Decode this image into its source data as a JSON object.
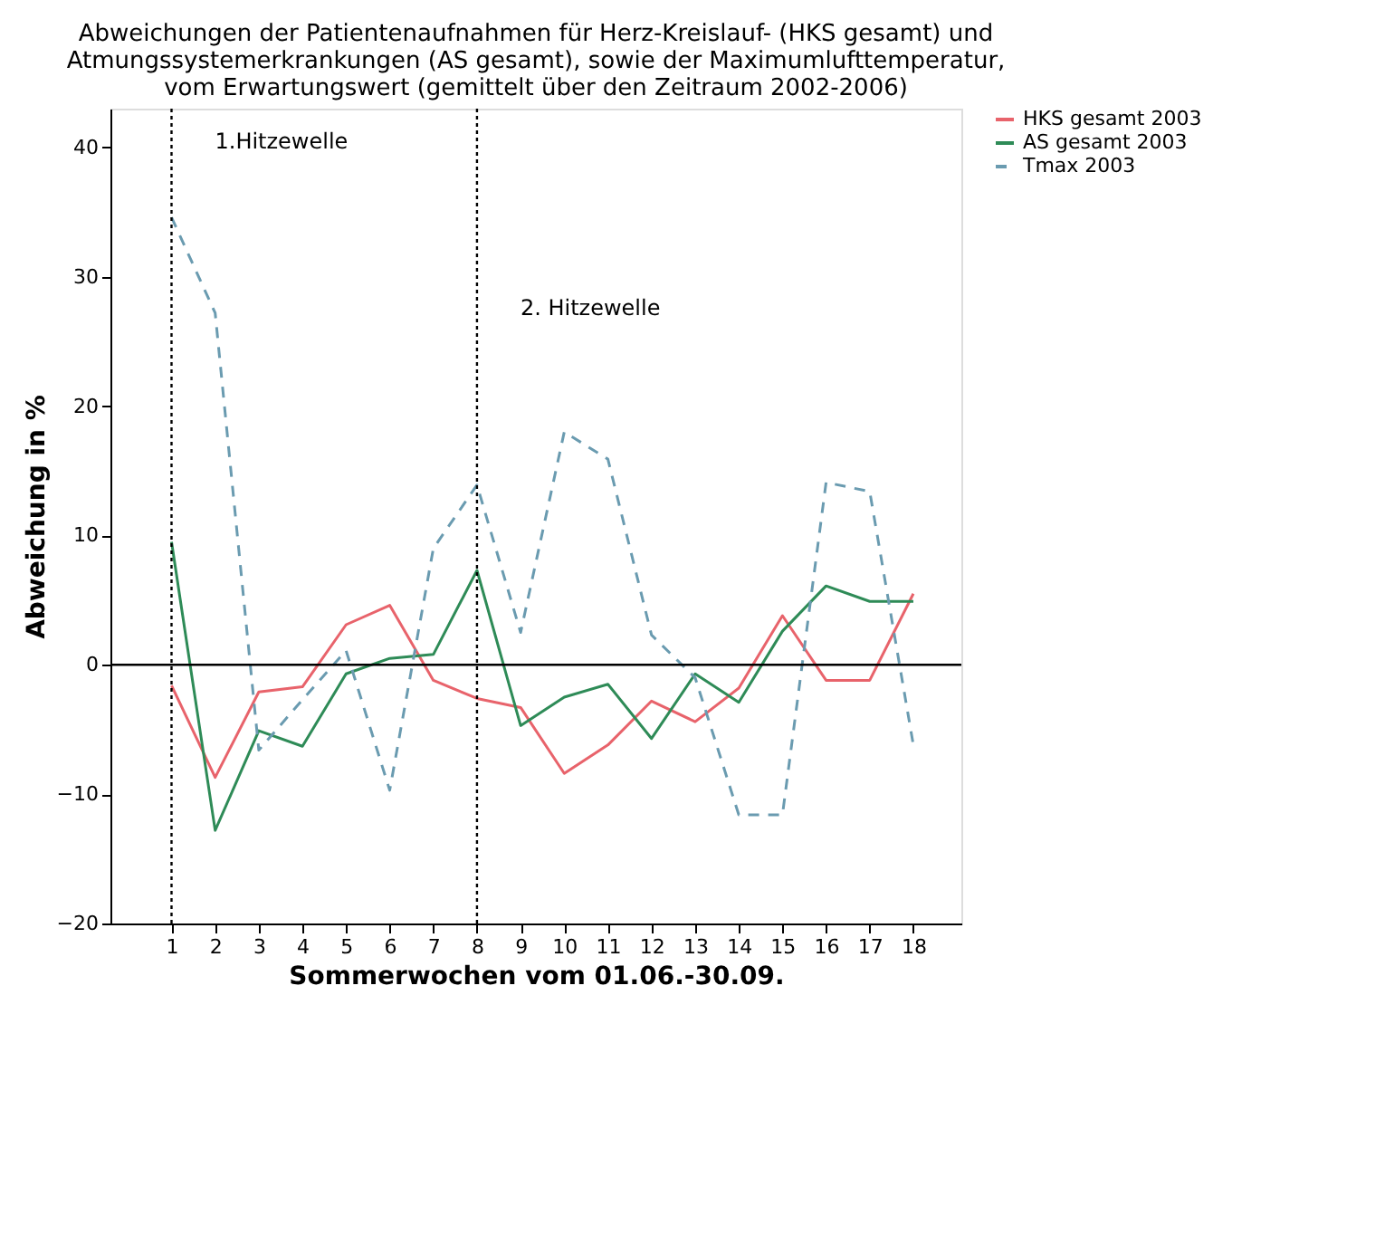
{
  "chart_data": {
    "type": "line",
    "title": "Abweichungen der Patientenaufnahmen für Herz-Kreislauf- (HKS gesamt) und\nAtmungssystemerkrankungen (AS gesamt), sowie der Maximumlufttemperatur,\nvom Erwartungswert (gemittelt über den Zeitraum 2002-2006)",
    "xlabel": "Sommerwochen vom 01.06.-30.09.",
    "ylabel": "Abweichung in %",
    "x": [
      1,
      2,
      3,
      4,
      5,
      6,
      7,
      8,
      9,
      10,
      11,
      12,
      13,
      14,
      15,
      16,
      17,
      18
    ],
    "series": [
      {
        "name": "HKS gesamt 2003",
        "color": "#e8636b",
        "line_style": "solid",
        "values": [
          -1.6,
          -8.7,
          -2.1,
          -1.7,
          3.1,
          4.6,
          -1.2,
          -2.6,
          -3.3,
          -8.4,
          -6.2,
          -2.8,
          -4.4,
          -1.8,
          3.8,
          -1.2,
          -1.2,
          5.5
        ]
      },
      {
        "name": "AS gesamt 2003",
        "color": "#2e8b57",
        "line_style": "solid",
        "values": [
          9.5,
          -12.8,
          -5.1,
          -6.3,
          -0.7,
          0.5,
          0.8,
          7.3,
          -4.7,
          -2.5,
          -1.5,
          -5.7,
          -0.7,
          -2.9,
          2.6,
          6.1,
          4.9,
          4.9
        ]
      },
      {
        "name": "Tmax 2003",
        "color": "#6a9bb0",
        "line_style": "dashed",
        "values": [
          34.6,
          27.2,
          -6.6,
          -2.7,
          1.1,
          -9.7,
          9.0,
          13.9,
          2.5,
          18.0,
          15.9,
          2.3,
          -1.0,
          -11.6,
          -11.6,
          14.1,
          13.4,
          -6.2
        ]
      }
    ],
    "xlim": [
      -0.4,
      19.1
    ],
    "xticks": [
      1,
      2,
      3,
      4,
      5,
      6,
      7,
      8,
      9,
      10,
      11,
      12,
      13,
      14,
      15,
      16,
      17,
      18
    ],
    "ylim": [
      -20,
      43
    ],
    "yticks": [
      -20,
      -10,
      0,
      10,
      20,
      30,
      40
    ],
    "ref_lines": [
      {
        "axis": "x",
        "value": 1,
        "line_style": "dotted",
        "color": "#000000",
        "label": "1.Hitzewelle"
      },
      {
        "axis": "x",
        "value": 8,
        "line_style": "dotted",
        "color": "#000000",
        "label": "2. Hitzewelle"
      },
      {
        "axis": "y",
        "value": 0,
        "line_style": "solid",
        "color": "#000000"
      }
    ],
    "grid": false,
    "legend": "right",
    "marker": "none"
  }
}
